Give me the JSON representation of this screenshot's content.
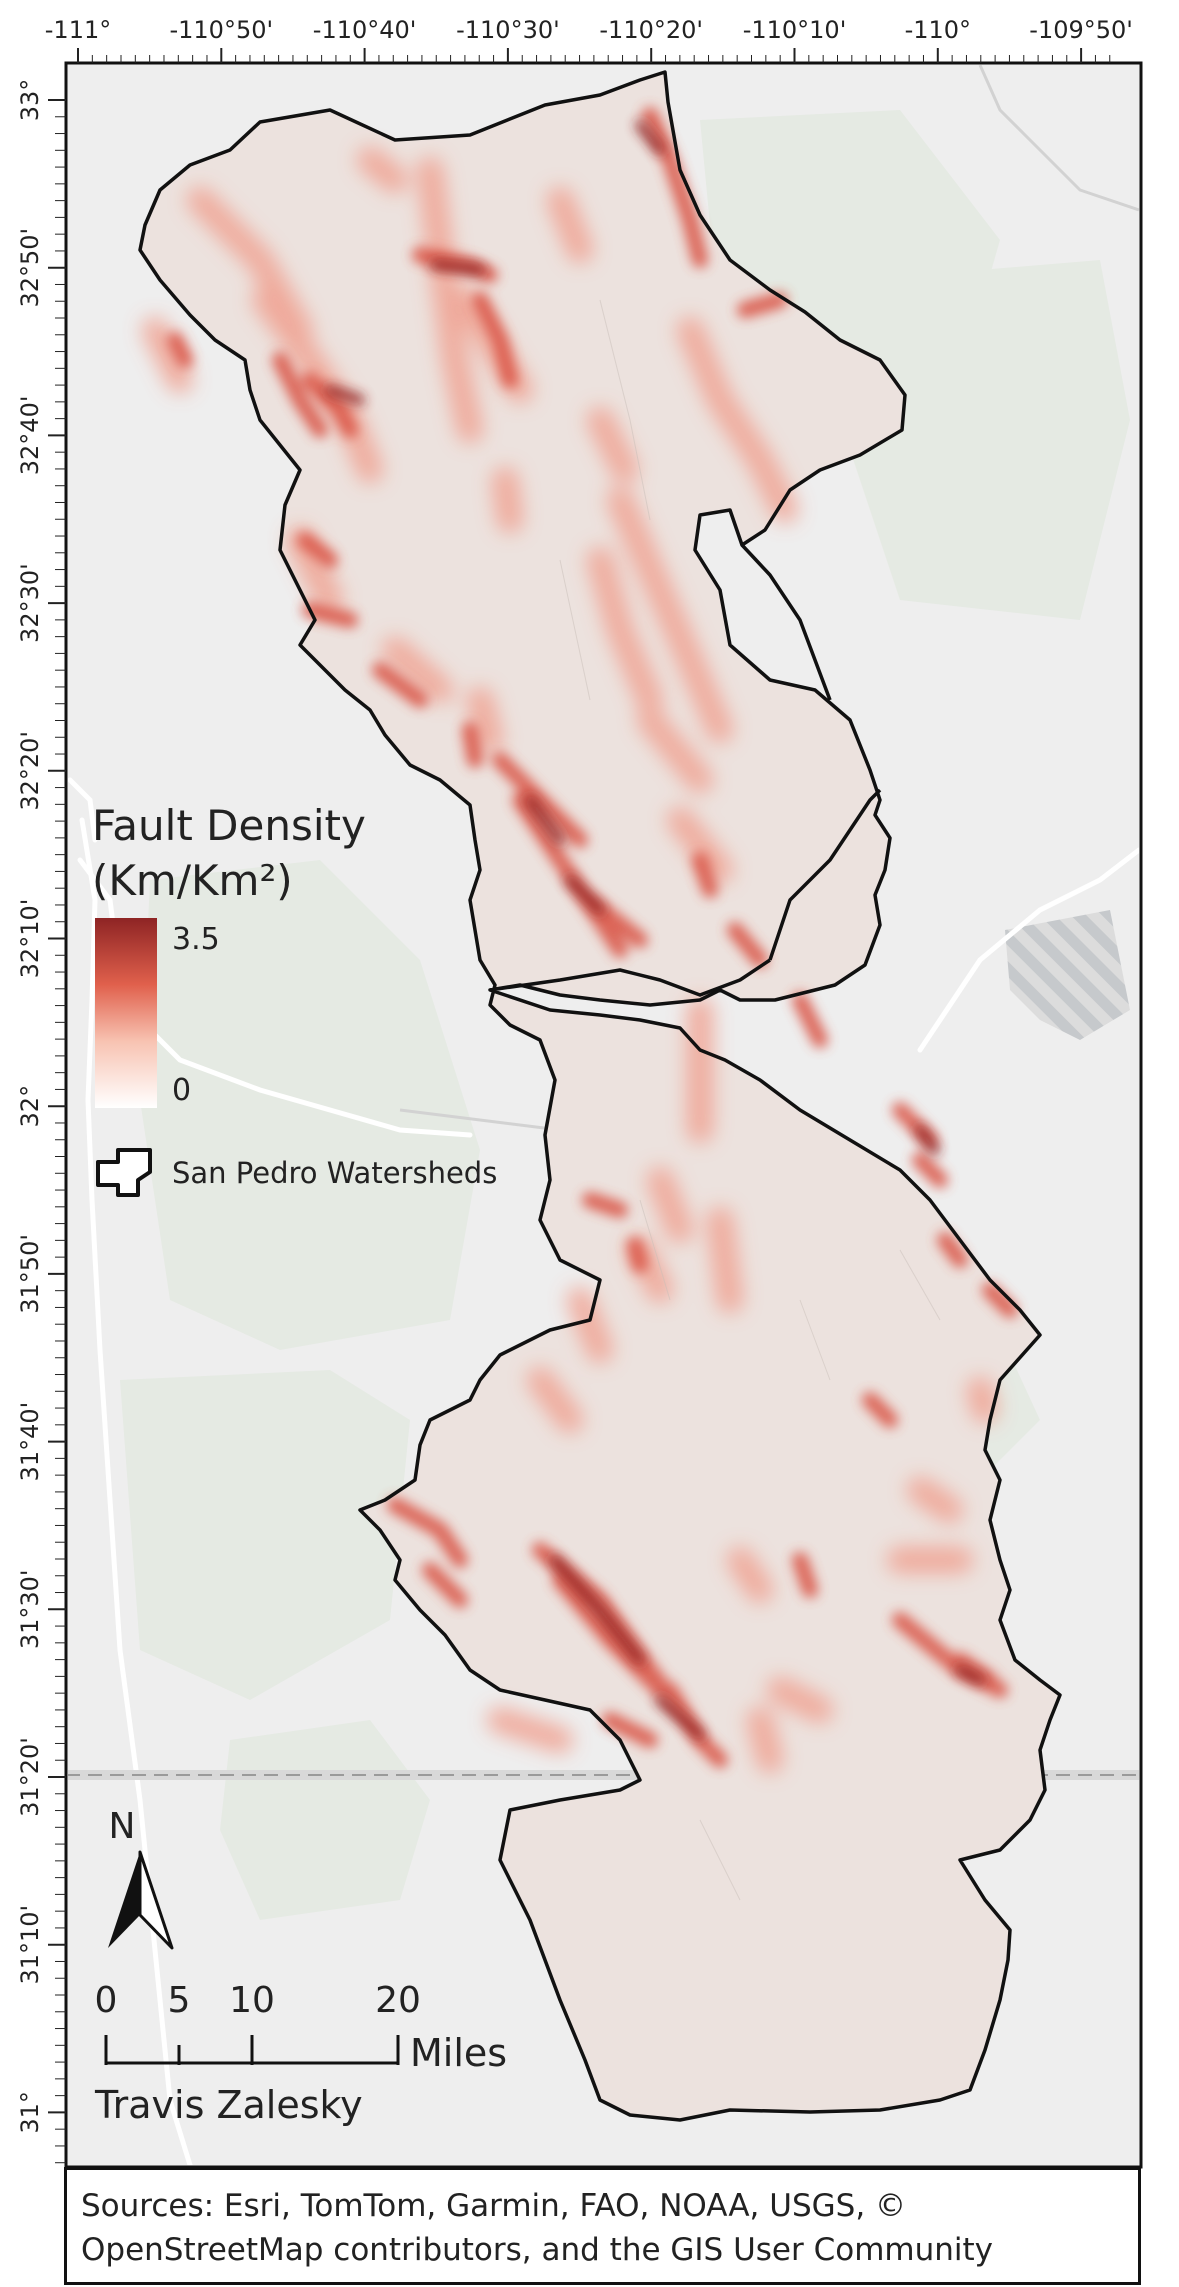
{
  "map": {
    "longitude_ticks": [
      "-111°",
      "-110°50'",
      "-110°40'",
      "-110°30'",
      "-110°20'",
      "-110°10'",
      "-110°",
      "-109°50'"
    ],
    "latitude_ticks": [
      "33°",
      "32°50'",
      "32°40'",
      "32°30'",
      "32°20'",
      "32°10'",
      "32°",
      "31°50'",
      "31°40'",
      "31°30'",
      "31°20'",
      "31°10'",
      "31°"
    ],
    "colors": {
      "basemap": "#eeeeee",
      "land_cover": "#e6ebe4",
      "watershed_fill": "#ece2de",
      "watershed_outline": "#111111",
      "density_high": "#9c2a2a",
      "density_mid": "#e0604c",
      "density_low": "#fbeae6"
    }
  },
  "legend": {
    "title_line1": "Fault Density",
    "title_line2": "(Km/Km²)",
    "max_value": "3.5",
    "min_value": "0",
    "watersheds_label": "San Pedro Watersheds"
  },
  "north_arrow": {
    "label": "N",
    "icon": "north-arrow-icon"
  },
  "scale_bar": {
    "ticks": [
      "0",
      "5",
      "10",
      "20"
    ],
    "unit": "Miles"
  },
  "author": "Travis Zalesky",
  "sources": {
    "line1": "Sources: Esri, TomTom, Garmin, FAO, NOAA, USGS, ©",
    "line2": "OpenStreetMap contributors, and the GIS User Community"
  }
}
